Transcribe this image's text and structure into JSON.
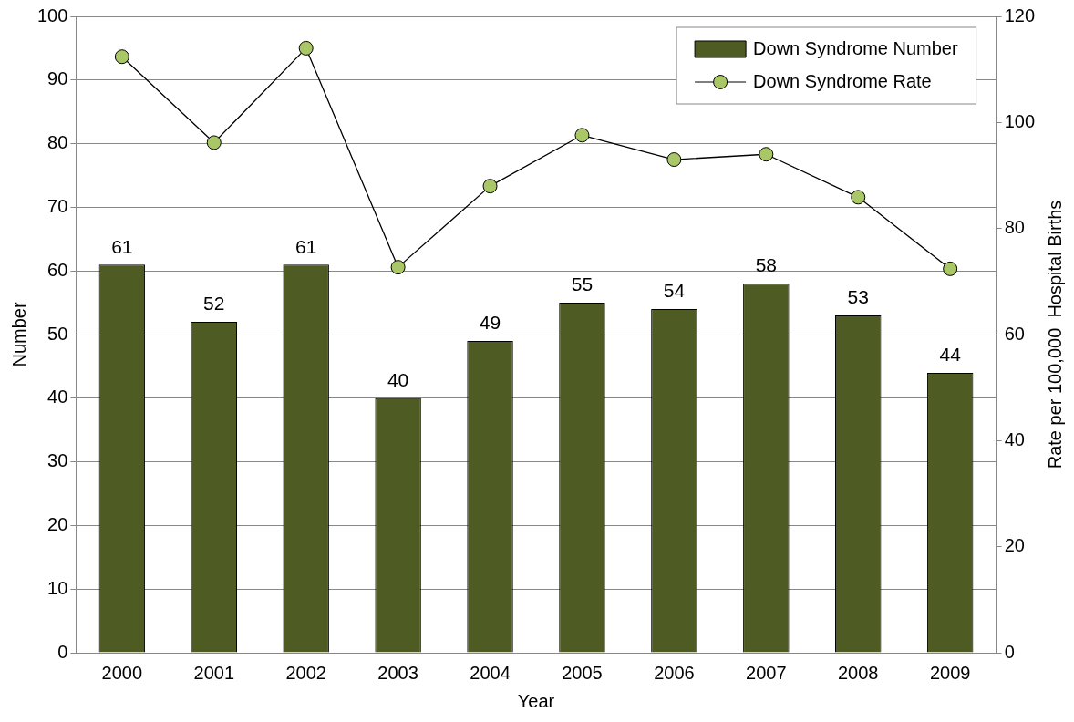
{
  "chart_data": {
    "type": "bar",
    "xlabel": "Year",
    "ylabel": "Number",
    "y2label": "Rate per 100,000  Hospital Births",
    "categories": [
      "2000",
      "2001",
      "2002",
      "2003",
      "2004",
      "2005",
      "2006",
      "2007",
      "2008",
      "2009"
    ],
    "series": [
      {
        "name": "Down Syndrome Number",
        "color": "#4e5b22",
        "values": [
          61,
          52,
          61,
          40,
          49,
          55,
          54,
          58,
          53,
          44
        ],
        "data_labels": true
      },
      {
        "name": "Down Syndrome Rate",
        "type": "line",
        "axis": "y2",
        "color": "#a9c766",
        "values": [
          112.4,
          96.2,
          114.0,
          72.7,
          88.0,
          97.6,
          93.0,
          94.0,
          85.9,
          72.4
        ]
      }
    ],
    "ylim": [
      0,
      100
    ],
    "yticks": [
      0,
      10,
      20,
      30,
      40,
      50,
      60,
      70,
      80,
      90,
      100
    ],
    "y2lim": [
      0,
      120
    ],
    "y2ticks": [
      0,
      20,
      40,
      60,
      80,
      100,
      120
    ],
    "grid": "y",
    "legend": "top right",
    "marker": "circle",
    "line_style": "solid"
  }
}
